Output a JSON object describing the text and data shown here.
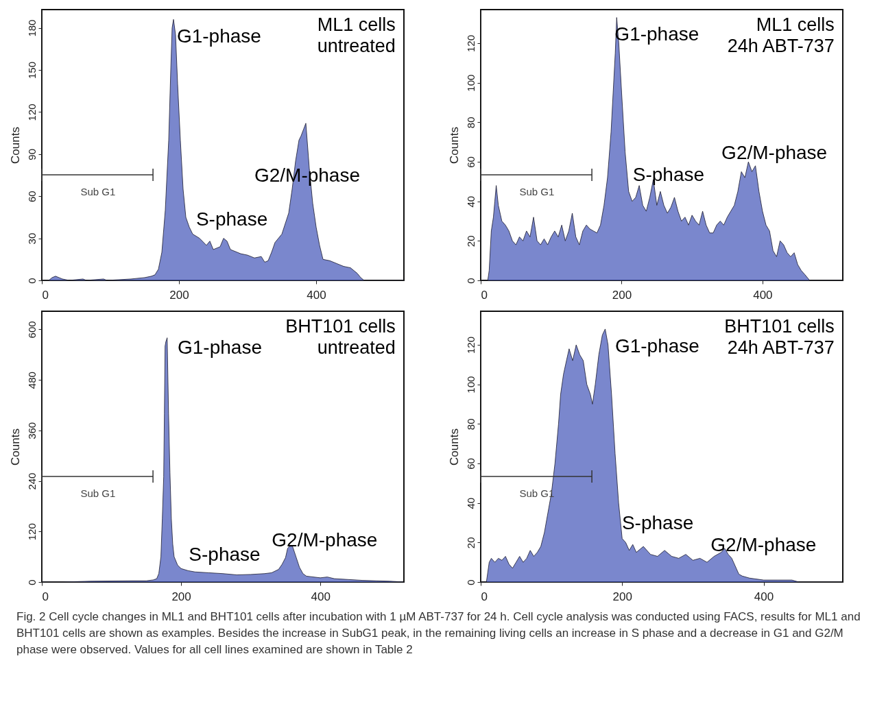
{
  "chart_data": [
    {
      "type": "area",
      "ylabel": "Counts",
      "xlim": [
        0,
        528
      ],
      "ylim": [
        0,
        193
      ],
      "xticks": [
        0,
        200,
        400
      ],
      "yticks": [
        0,
        30,
        60,
        90,
        120,
        150,
        180
      ],
      "x": [
        0,
        10,
        15,
        20,
        25,
        30,
        40,
        60,
        65,
        90,
        95,
        130,
        150,
        160,
        165,
        170,
        175,
        180,
        185,
        188,
        190,
        192,
        195,
        198,
        202,
        206,
        210,
        215,
        220,
        230,
        240,
        245,
        250,
        260,
        265,
        270,
        275,
        280,
        290,
        300,
        310,
        320,
        325,
        330,
        335,
        340,
        350,
        360,
        365,
        370,
        375,
        378,
        385,
        390,
        395,
        400,
        405,
        410,
        420,
        430,
        440,
        450,
        460,
        465,
        470,
        528
      ],
      "series": [
        {
          "color": "#4254b8",
          "values": [
            0,
            0,
            2,
            3,
            2,
            1,
            0,
            1,
            0,
            1,
            0,
            1,
            2,
            3,
            4,
            8,
            20,
            50,
            100,
            150,
            180,
            186,
            175,
            140,
            100,
            65,
            45,
            38,
            33,
            30,
            25,
            28,
            22,
            24,
            30,
            28,
            22,
            21,
            19,
            18,
            16,
            17,
            13,
            14,
            20,
            27,
            33,
            48,
            65,
            85,
            100,
            103,
            112,
            80,
            55,
            38,
            25,
            15,
            14,
            12,
            10,
            9,
            5,
            2,
            0,
            0
          ]
        }
      ],
      "annotations": [
        "G1-phase",
        "S-phase",
        "G2/M-phase",
        "ML1 cells\nuntreated",
        "Sub G1"
      ]
    },
    {
      "type": "area",
      "ylabel": "Counts",
      "xlim": [
        0,
        514
      ],
      "ylim": [
        0,
        137
      ],
      "xticks": [
        0,
        200,
        400
      ],
      "yticks": [
        0,
        20,
        40,
        60,
        80,
        100,
        120
      ],
      "x": [
        0,
        10,
        12,
        15,
        18,
        20,
        22,
        25,
        30,
        35,
        40,
        45,
        50,
        55,
        60,
        65,
        70,
        75,
        80,
        85,
        90,
        95,
        100,
        105,
        110,
        115,
        120,
        125,
        130,
        135,
        140,
        145,
        150,
        155,
        160,
        165,
        170,
        175,
        180,
        185,
        188,
        191,
        193,
        196,
        200,
        205,
        210,
        215,
        220,
        225,
        230,
        235,
        240,
        245,
        250,
        255,
        260,
        265,
        270,
        275,
        280,
        285,
        290,
        295,
        300,
        305,
        310,
        315,
        320,
        325,
        330,
        335,
        340,
        345,
        350,
        355,
        360,
        365,
        370,
        375,
        380,
        385,
        390,
        395,
        400,
        405,
        410,
        415,
        420,
        425,
        430,
        435,
        440,
        445,
        450,
        455,
        460,
        467,
        514
      ],
      "series": [
        {
          "color": "#4254b8",
          "values": [
            0,
            0,
            5,
            25,
            32,
            40,
            48,
            38,
            30,
            28,
            25,
            20,
            18,
            22,
            20,
            25,
            22,
            32,
            20,
            18,
            21,
            18,
            22,
            25,
            22,
            28,
            20,
            25,
            34,
            22,
            18,
            25,
            28,
            26,
            25,
            24,
            28,
            38,
            52,
            75,
            95,
            115,
            133,
            120,
            95,
            65,
            45,
            40,
            42,
            48,
            38,
            35,
            42,
            51,
            38,
            45,
            38,
            34,
            37,
            42,
            35,
            30,
            32,
            28,
            33,
            30,
            28,
            35,
            28,
            24,
            24,
            28,
            30,
            28,
            32,
            35,
            38,
            45,
            55,
            52,
            60,
            55,
            58,
            45,
            35,
            28,
            25,
            15,
            12,
            20,
            18,
            14,
            12,
            14,
            8,
            5,
            3,
            0,
            0
          ]
        }
      ],
      "annotations": [
        "G1-phase",
        "S-phase",
        "G2/M-phase",
        "ML1 cells\n24h ABT-737",
        "Sub G1"
      ]
    },
    {
      "type": "area",
      "ylabel": "Counts",
      "xlim": [
        0,
        520
      ],
      "ylim": [
        0,
        643
      ],
      "xticks": [
        0,
        200,
        400
      ],
      "yticks": [
        0,
        120,
        240,
        360,
        480,
        600
      ],
      "x": [
        0,
        30,
        70,
        130,
        150,
        160,
        165,
        168,
        171,
        173,
        175,
        176,
        177,
        178,
        180,
        182,
        184,
        186,
        188,
        190,
        195,
        200,
        210,
        220,
        240,
        260,
        280,
        300,
        320,
        330,
        340,
        345,
        350,
        353,
        356,
        360,
        365,
        370,
        375,
        380,
        390,
        400,
        410,
        420,
        440,
        460,
        480,
        500,
        520
      ],
      "series": [
        {
          "color": "#4254b8",
          "values": [
            0,
            0,
            2,
            3,
            3,
            5,
            8,
            20,
            60,
            150,
            250,
            400,
            560,
            570,
            580,
            400,
            260,
            150,
            90,
            60,
            40,
            32,
            27,
            24,
            22,
            20,
            17,
            18,
            20,
            22,
            30,
            42,
            58,
            80,
            85,
            85,
            60,
            35,
            20,
            14,
            12,
            10,
            12,
            8,
            6,
            4,
            3,
            2,
            0
          ]
        }
      ],
      "annotations": [
        "G1-phase",
        "S-phase",
        "G2/M-phase",
        "BHT101 cells\nuntreated",
        "Sub G1"
      ]
    },
    {
      "type": "area",
      "ylabel": "Counts",
      "xlim": [
        0,
        512
      ],
      "ylim": [
        0,
        137
      ],
      "xticks": [
        0,
        200,
        400
      ],
      "yticks": [
        0,
        20,
        40,
        60,
        80,
        100,
        120
      ],
      "x": [
        0,
        8,
        12,
        15,
        20,
        25,
        30,
        35,
        40,
        45,
        50,
        55,
        60,
        65,
        70,
        75,
        80,
        85,
        90,
        95,
        100,
        105,
        110,
        113,
        117,
        120,
        125,
        130,
        135,
        140,
        145,
        150,
        155,
        158,
        162,
        167,
        172,
        176,
        180,
        185,
        190,
        195,
        200,
        205,
        210,
        215,
        220,
        230,
        240,
        250,
        260,
        270,
        280,
        290,
        300,
        310,
        320,
        330,
        340,
        345,
        350,
        355,
        360,
        365,
        370,
        380,
        400,
        420,
        440,
        450,
        512
      ],
      "series": [
        {
          "color": "#4254b8",
          "values": [
            0,
            0,
            10,
            12,
            10,
            12,
            11,
            13,
            9,
            7,
            10,
            13,
            10,
            12,
            16,
            13,
            15,
            18,
            25,
            35,
            45,
            60,
            80,
            95,
            105,
            110,
            118,
            112,
            120,
            115,
            112,
            100,
            95,
            90,
            100,
            115,
            125,
            128,
            120,
            95,
            65,
            40,
            22,
            20,
            16,
            19,
            15,
            18,
            14,
            13,
            16,
            13,
            12,
            14,
            11,
            12,
            10,
            13,
            15,
            17,
            14,
            12,
            8,
            4,
            3,
            2,
            1,
            1,
            1,
            0,
            0
          ]
        }
      ],
      "annotations": [
        "G1-phase",
        "S-phase",
        "G2/M-phase",
        "BHT101 cells\n24h ABT-737",
        "Sub G1"
      ]
    },
    {
      "type": "other",
      "annotations": [
        "Fig. 2  Cell cycle changes in ML1 and BHT101 cells after incubation with 1 µM ABT-737 for 24 h. Cell cycle analysis was conducted using FACS, results for ML1 and BHT101 cells are shown as examples. Besides the increase in SubG1 peak, in the remaining living cells an increase in S phase and a decrease in G1 and G2/M phase were observed. Values for all cell lines examined are shown in Table 2"
      ]
    }
  ]
}
